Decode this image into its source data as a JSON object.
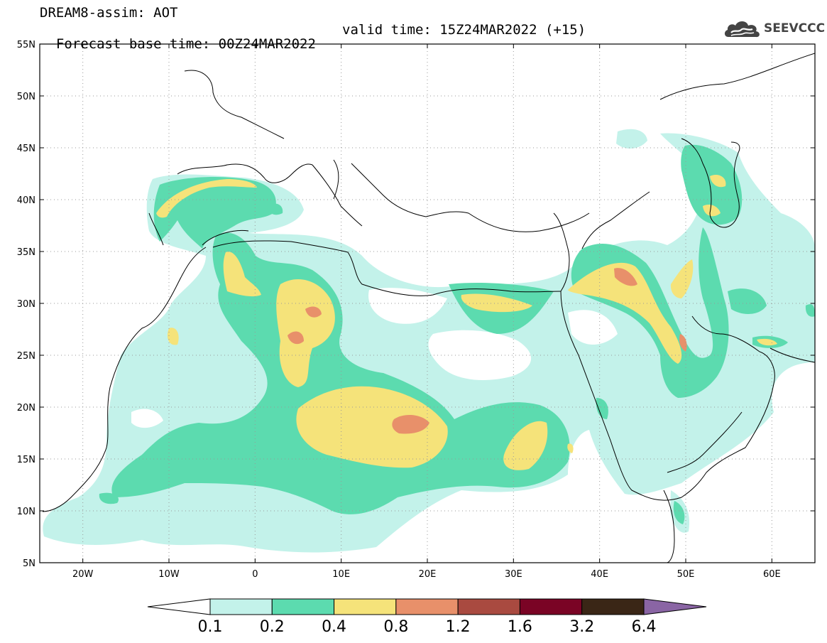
{
  "header": {
    "title": "DREAM8-assim: AOT",
    "base_time": "Forecast base time: 00Z24MAR2022",
    "valid_time": "valid time: 15Z24MAR2022 (+15)"
  },
  "logo": {
    "text": "SEEVCCC",
    "icon": "cloud-icon"
  },
  "map": {
    "lon_range": [
      -25,
      65
    ],
    "lat_range": [
      5,
      55
    ],
    "grid": "dotted",
    "lon_ticks": [
      {
        "value": -20,
        "label": "20W"
      },
      {
        "value": -10,
        "label": "10W"
      },
      {
        "value": 0,
        "label": "0"
      },
      {
        "value": 10,
        "label": "10E"
      },
      {
        "value": 20,
        "label": "20E"
      },
      {
        "value": 30,
        "label": "30E"
      },
      {
        "value": 40,
        "label": "40E"
      },
      {
        "value": 50,
        "label": "50E"
      },
      {
        "value": 60,
        "label": "60E"
      }
    ],
    "lat_ticks": [
      {
        "value": 55,
        "label": "55N"
      },
      {
        "value": 50,
        "label": "50N"
      },
      {
        "value": 45,
        "label": "45N"
      },
      {
        "value": 40,
        "label": "40N"
      },
      {
        "value": 35,
        "label": "35N"
      },
      {
        "value": 30,
        "label": "30N"
      },
      {
        "value": 25,
        "label": "25N"
      },
      {
        "value": 20,
        "label": "20N"
      },
      {
        "value": 15,
        "label": "15N"
      },
      {
        "value": 10,
        "label": "10N"
      },
      {
        "value": 5,
        "label": "5N"
      }
    ]
  },
  "colorbar": {
    "labels": [
      "0.1",
      "0.2",
      "0.4",
      "0.8",
      "1.2",
      "1.6",
      "3.2",
      "6.4"
    ],
    "colors": [
      "#ffffff",
      "#c3f2ea",
      "#5cdbaf",
      "#f5e37a",
      "#e8906a",
      "#a94a40",
      "#7a0425",
      "#3a2616",
      "#8a65a4"
    ]
  }
}
